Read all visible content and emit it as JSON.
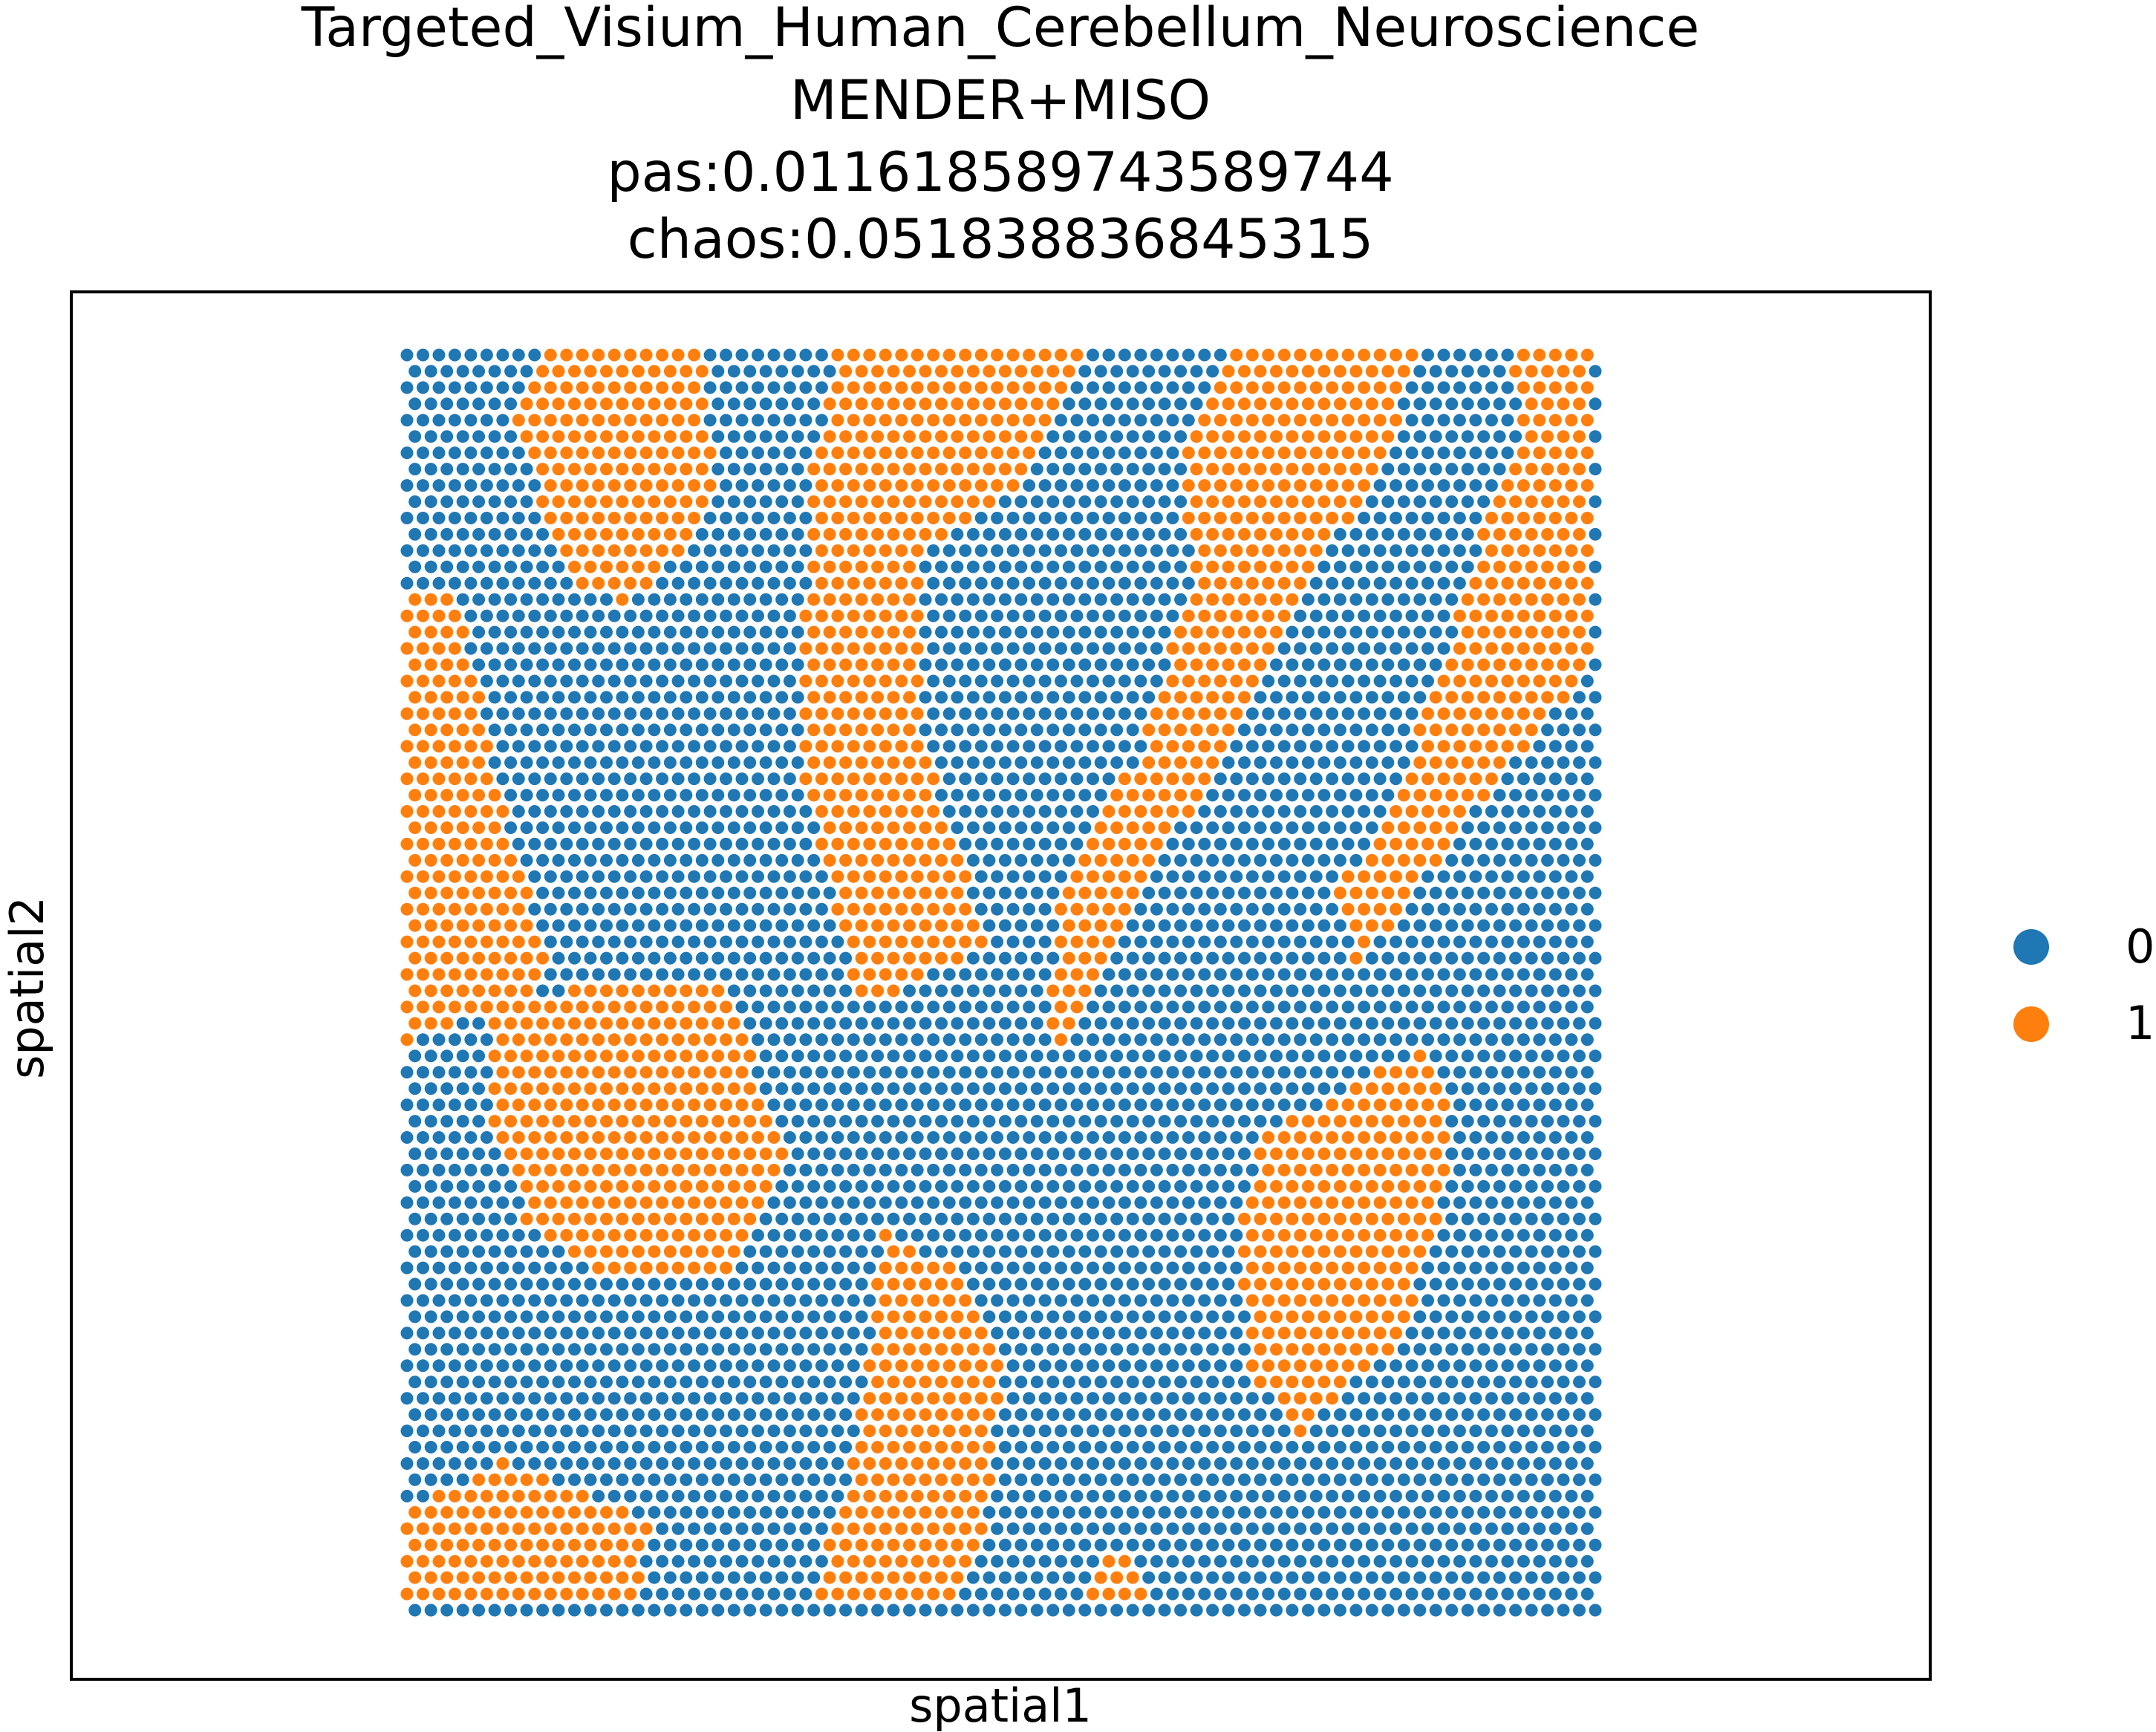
{
  "chart_data": {
    "type": "scatter",
    "title_lines": [
      "Targeted_Visium_Human_Cerebellum_Neuroscience",
      "MENDER+MISO",
      "pas:0.011618589743589744",
      "chaos:0.051838836845315"
    ],
    "xlabel": "spatial1",
    "ylabel": "spatial2",
    "grid": false,
    "ticks_visible": false,
    "legend": {
      "placement": "right",
      "entries": [
        {
          "label": "0",
          "color": "#1f77b4"
        },
        {
          "label": "1",
          "color": "#ff7f0e"
        }
      ]
    },
    "series": [
      {
        "name": "0",
        "color": "#1f77b4"
      },
      {
        "name": "1",
        "color": "#ff7f0e"
      }
    ],
    "grid_layout": {
      "rows": 78,
      "cols": 75,
      "hex_offset_rows": true
    },
    "domain_note_regions": [
      {
        "cluster": "1",
        "polygon": [
          [
            0.11,
            0
          ],
          [
            0.25,
            0
          ],
          [
            0.26,
            0.12
          ],
          [
            0.19,
            0.2
          ],
          [
            0.14,
            0.18
          ],
          [
            0.09,
            0.06
          ]
        ]
      },
      {
        "cluster": "1",
        "polygon": [
          [
            0.36,
            0
          ],
          [
            0.57,
            0
          ],
          [
            0.52,
            0.1
          ],
          [
            0.43,
            0.16
          ],
          [
            0.43,
            0.3
          ],
          [
            0.49,
            0.47
          ],
          [
            0.38,
            0.52
          ],
          [
            0.33,
            0.32
          ],
          [
            0.34,
            0.1
          ]
        ]
      },
      {
        "cluster": "1",
        "polygon": [
          [
            0.69,
            0
          ],
          [
            0.85,
            0
          ],
          [
            0.82,
            0.1
          ],
          [
            0.76,
            0.17
          ],
          [
            0.72,
            0.25
          ],
          [
            0.66,
            0.36
          ],
          [
            0.6,
            0.47
          ],
          [
            0.55,
            0.57
          ],
          [
            0.54,
            0.53
          ],
          [
            0.55,
            0.43
          ],
          [
            0.62,
            0.31
          ],
          [
            0.66,
            0.18
          ],
          [
            0.65,
            0.07
          ]
        ]
      },
      {
        "cluster": "1",
        "polygon": [
          [
            0.93,
            0
          ],
          [
            1,
            0
          ],
          [
            1,
            0.25
          ],
          [
            0.95,
            0.3
          ],
          [
            0.89,
            0.37
          ],
          [
            0.84,
            0.44
          ],
          [
            0.8,
            0.49
          ],
          [
            0.78,
            0.43
          ],
          [
            0.83,
            0.36
          ],
          [
            0.87,
            0.25
          ],
          [
            0.91,
            0.13
          ],
          [
            0.94,
            0.07
          ]
        ]
      },
      {
        "cluster": "1",
        "polygon": [
          [
            0,
            0.19
          ],
          [
            0.04,
            0.19
          ],
          [
            0.08,
            0.35
          ],
          [
            0.12,
            0.5
          ],
          [
            0.0,
            0.55
          ]
        ]
      },
      {
        "cluster": "1",
        "polygon": [
          [
            0.07,
            0.51
          ],
          [
            0.27,
            0.5
          ],
          [
            0.32,
            0.65
          ],
          [
            0.27,
            0.74
          ],
          [
            0.17,
            0.74
          ],
          [
            0.1,
            0.69
          ],
          [
            0.07,
            0.6
          ]
        ]
      },
      {
        "cluster": "1",
        "polygon": [
          [
            0.72,
            0.62
          ],
          [
            0.86,
            0.55
          ],
          [
            0.88,
            0.6
          ],
          [
            0.87,
            0.7
          ],
          [
            0.83,
            0.79
          ],
          [
            0.75,
            0.86
          ],
          [
            0.71,
            0.81
          ],
          [
            0.7,
            0.7
          ]
        ]
      },
      {
        "cluster": "1",
        "polygon": [
          [
            0.4,
            0.7
          ],
          [
            0.47,
            0.73
          ],
          [
            0.5,
            0.81
          ],
          [
            0.49,
            0.92
          ],
          [
            0.46,
            1
          ],
          [
            0.34,
            1
          ],
          [
            0.37,
            0.9
          ],
          [
            0.39,
            0.78
          ]
        ]
      },
      {
        "cluster": "1",
        "polygon": [
          [
            0,
            0.92
          ],
          [
            0.08,
            0.88
          ],
          [
            0.21,
            0.93
          ],
          [
            0.19,
            1
          ],
          [
            0,
            1
          ]
        ]
      },
      {
        "cluster": "1",
        "polygon": [
          [
            0.58,
            0.96
          ],
          [
            0.61,
            0.96
          ],
          [
            0.63,
            1
          ],
          [
            0.57,
            1
          ]
        ]
      }
    ]
  }
}
